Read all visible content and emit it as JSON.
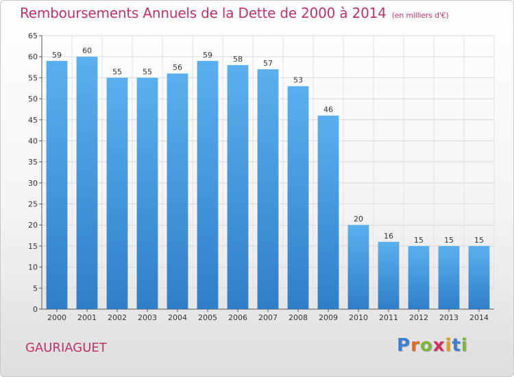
{
  "chart_data": {
    "type": "bar",
    "title": "Remboursements Annuels de la Dette de 2000 à 2014",
    "subtitle": "(en milliers d'€)",
    "xlabel": "",
    "ylabel": "",
    "categories": [
      "2000",
      "2001",
      "2002",
      "2003",
      "2004",
      "2005",
      "2006",
      "2007",
      "2008",
      "2009",
      "2010",
      "2011",
      "2012",
      "2013",
      "2014"
    ],
    "values": [
      59,
      60,
      55,
      55,
      56,
      59,
      58,
      57,
      53,
      46,
      20,
      16,
      15,
      15,
      15
    ],
    "ylim": [
      0,
      65
    ],
    "yticks": [
      0,
      5,
      10,
      15,
      20,
      25,
      30,
      35,
      40,
      45,
      50,
      55,
      60,
      65
    ],
    "grid": true,
    "bar_color": "#4f9fe0"
  },
  "footer": {
    "commune": "GAURIAGUET",
    "logo_letters": [
      "P",
      "r",
      "o",
      "x",
      "i",
      "t",
      "i"
    ],
    "logo_colors": [
      "#3a7fd0",
      "#e06a1a",
      "#7ab83a",
      "#d03060",
      "#e0a020",
      "#3a7fd0",
      "#7ab83a"
    ]
  }
}
